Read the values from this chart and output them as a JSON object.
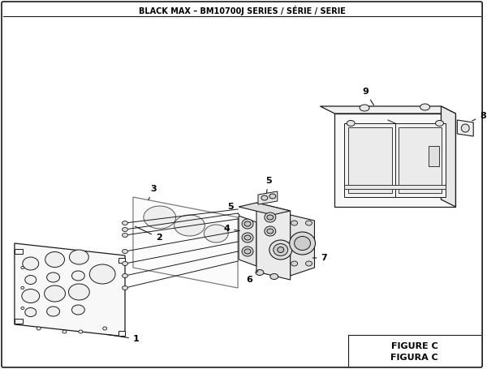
{
  "title": "BLACK MAX – BM10700J SERIES / SÉRIE / SERIE",
  "figure_label": "FIGURE C",
  "figura_label": "FIGURA C",
  "bg_color": "#ffffff",
  "lc": "#1a1a1a",
  "fc_light": "#f0f0f0",
  "fc_mid": "#e0e0e0",
  "fc_dark": "#cccccc"
}
